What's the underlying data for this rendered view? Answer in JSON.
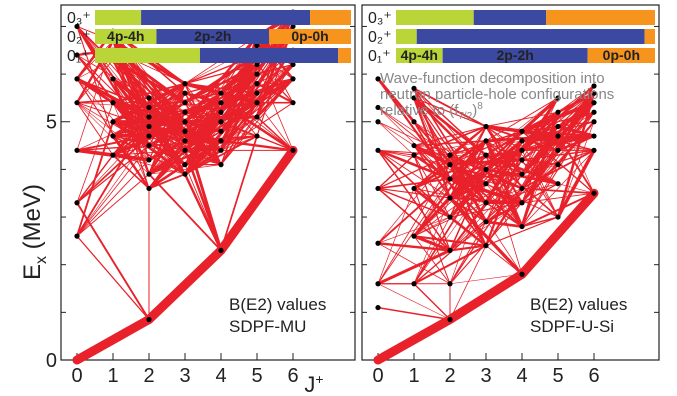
{
  "chart_data": [
    {
      "type": "scatter",
      "panel": "left",
      "annotation": [
        "B(E2) values",
        "SDPF-MU"
      ],
      "xlabel": "J⁺",
      "ylabel": "Eₓ (MeV)",
      "x_ticks": [
        0,
        1,
        2,
        3,
        4,
        5,
        6
      ],
      "y_ticks": [
        0,
        5
      ],
      "xlim": [
        -0.3,
        7.6
      ],
      "ylim": [
        0,
        7.45
      ],
      "yrast": [
        [
          0,
          0.0
        ],
        [
          2,
          0.85
        ],
        [
          4,
          2.3
        ],
        [
          6,
          4.4
        ]
      ],
      "levels": {
        "0": [
          2.6,
          3.3,
          4.4,
          5.4,
          5.9,
          6.4,
          7.0
        ],
        "1": [
          4.3,
          4.7,
          5.0,
          5.4,
          5.9,
          6.3,
          6.5,
          6.7,
          6.9
        ],
        "2": [
          0.85,
          3.6,
          3.9,
          4.2,
          4.5,
          4.7,
          4.9,
          5.1,
          5.3,
          5.5
        ],
        "3": [
          3.9,
          4.1,
          4.4,
          4.6,
          4.8,
          5.0,
          5.2,
          5.4,
          5.6,
          5.8
        ],
        "4": [
          2.3,
          4.1,
          4.4,
          4.6,
          4.8,
          5.0,
          5.2,
          5.4,
          5.6
        ],
        "5": [
          4.7,
          5.1,
          5.4,
          5.6,
          5.8,
          6.0,
          6.2,
          6.4,
          6.6,
          6.8
        ],
        "6": [
          4.4,
          5.4,
          5.9,
          6.2,
          6.5,
          6.8,
          7.0,
          7.2,
          7.3
        ]
      },
      "decomposition": [
        {
          "state": "0₃⁺",
          "fractions": [
            0.18,
            0.66,
            0.16
          ]
        },
        {
          "state": "0₂⁺",
          "fractions": [
            0.24,
            0.44,
            0.32
          ]
        },
        {
          "state": "0₁⁺",
          "fractions": [
            0.41,
            0.54,
            0.05
          ]
        }
      ]
    },
    {
      "type": "scatter",
      "panel": "right",
      "annotation": [
        "B(E2) values",
        "SDPF-U-Si"
      ],
      "xlabel": "J⁺",
      "ylabel": "Eₓ (MeV)",
      "x_ticks": [
        0,
        1,
        2,
        3,
        4,
        5,
        6
      ],
      "y_ticks": [
        0,
        5
      ],
      "xlim": [
        -0.3,
        7.6
      ],
      "ylim": [
        0,
        7.45
      ],
      "yrast": [
        [
          0,
          0.0
        ],
        [
          2,
          0.85
        ],
        [
          4,
          1.8
        ],
        [
          6,
          3.5
        ]
      ],
      "levels": {
        "0": [
          1.1,
          1.6,
          2.45,
          3.6,
          4.4,
          5.0,
          5.3,
          5.9
        ],
        "1": [
          1.6,
          2.6,
          3.6,
          4.3,
          4.5,
          5.0,
          5.5,
          5.7
        ],
        "2": [
          0.85,
          1.6,
          2.3,
          3.0,
          3.4,
          3.8,
          4.1,
          4.3
        ],
        "3": [
          2.4,
          2.9,
          3.3,
          3.7,
          4.0,
          4.3,
          4.6,
          4.9
        ],
        "4": [
          1.8,
          2.8,
          3.3,
          3.6,
          3.9,
          4.2,
          4.4,
          4.6,
          4.8
        ],
        "5": [
          3.0,
          3.7,
          4.1,
          4.4,
          4.7,
          4.9,
          5.2,
          5.5
        ],
        "6": [
          3.5,
          4.4,
          4.7,
          5.0,
          5.2,
          5.4,
          5.6,
          5.75
        ]
      },
      "decomposition": [
        {
          "state": "0₃⁺",
          "fractions": [
            0.3,
            0.28,
            0.42
          ]
        },
        {
          "state": "0₂⁺",
          "fractions": [
            0.08,
            0.88,
            0.04
          ]
        },
        {
          "state": "0₁⁺",
          "fractions": [
            0.18,
            0.56,
            0.26
          ]
        }
      ],
      "caption": [
        "Wave-function decomposition into",
        "neutron particle-hole configurations",
        "relative to (f",
        "7/2",
        ")",
        "8"
      ]
    }
  ],
  "configuration_labels": [
    "4p-4h",
    "2p-2h",
    "0p-0h"
  ],
  "colors": {
    "four_p_four_h": "#b9d538",
    "two_p_two_h": "#3b4aa0",
    "zero_p_zero_h": "#f7941d",
    "transition": "#e8212a",
    "level": "#000000"
  }
}
